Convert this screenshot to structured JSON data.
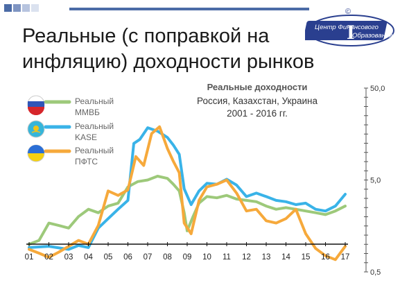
{
  "slide": {
    "title": "Реальные (с поправкой на инфляцию) доходности рынков",
    "logo_text_1": "Центр Финансового",
    "logo_text_2": "Образования",
    "logo_mark": "I",
    "logo_copyright": "©"
  },
  "chart_data": {
    "type": "line",
    "title": "Реальные доходности",
    "subtitle_1": "Россия, Казахстан, Украина",
    "subtitle_2": "2001 - 2016 гг.",
    "x_ticks": [
      "01",
      "02",
      "03",
      "04",
      "05",
      "06",
      "07",
      "08",
      "09",
      "10",
      "11",
      "12",
      "13",
      "14",
      "15",
      "16",
      "17"
    ],
    "y_scale": "log",
    "ylim": [
      0.5,
      50
    ],
    "y_ticks": [
      "50,0",
      "5,0",
      "0,5"
    ],
    "grid": false,
    "legend_position": "top-left",
    "series": [
      {
        "name": "Реальный ММВБ",
        "legend_line1": "Реальный",
        "legend_line2": "ММВБ",
        "color": "#9dc97a",
        "flag": "russia-flag-icon",
        "x": [
          2001,
          2001.5,
          2002,
          2002.5,
          2003,
          2003.5,
          2004,
          2004.5,
          2005,
          2005.5,
          2006,
          2006.5,
          2007,
          2007.5,
          2008,
          2008.3,
          2008.6,
          2008.85,
          2009,
          2009.3,
          2009.6,
          2010,
          2010.5,
          2011,
          2011.5,
          2012,
          2012.5,
          2013,
          2013.5,
          2014,
          2014.5,
          2015,
          2015.5,
          2016,
          2016.5,
          2017
        ],
        "y": [
          1.0,
          1.1,
          1.7,
          1.6,
          1.5,
          2.0,
          2.4,
          2.2,
          2.6,
          2.8,
          4.2,
          4.8,
          5.0,
          5.5,
          5.2,
          4.5,
          3.8,
          2.2,
          1.4,
          2.0,
          2.8,
          3.3,
          3.2,
          3.4,
          3.1,
          3.0,
          2.9,
          2.6,
          2.4,
          2.5,
          2.4,
          2.3,
          2.2,
          2.1,
          2.3,
          2.6
        ]
      },
      {
        "name": "Реальный KASE",
        "legend_line1": "Реальный",
        "legend_line2": "KASE",
        "color": "#39b3e8",
        "flag": "kazakhstan-flag-icon",
        "x": [
          2001,
          2002,
          2003,
          2003.5,
          2004,
          2004.5,
          2005,
          2005.5,
          2006,
          2006.3,
          2006.6,
          2007,
          2007.5,
          2008,
          2008.3,
          2008.6,
          2008.85,
          2009.2,
          2009.6,
          2010,
          2010.5,
          2011,
          2011.5,
          2012,
          2012.5,
          2013,
          2013.5,
          2014,
          2014.5,
          2015,
          2015.5,
          2016,
          2016.5,
          2017
        ],
        "y": [
          0.92,
          0.95,
          0.88,
          0.97,
          0.92,
          1.5,
          1.9,
          2.4,
          3.0,
          12.5,
          13.8,
          18.5,
          17.0,
          14.5,
          12.0,
          9.5,
          4.0,
          2.7,
          3.8,
          4.6,
          4.5,
          5.1,
          4.4,
          3.3,
          3.6,
          3.3,
          3.0,
          2.9,
          2.7,
          2.8,
          2.4,
          2.3,
          2.6,
          3.5
        ]
      },
      {
        "name": "Реальный ПФТС",
        "legend_line1": "Реальный",
        "legend_line2": "ПФТС",
        "color": "#f6a93b",
        "flag": "ukraine-flag-icon",
        "x": [
          2001,
          2001.5,
          2002,
          2002.5,
          2003,
          2003.5,
          2004,
          2004.5,
          2005,
          2005.5,
          2006,
          2006.4,
          2006.8,
          2007.2,
          2007.6,
          2008,
          2008.3,
          2008.6,
          2008.85,
          2009.2,
          2009.6,
          2010,
          2010.5,
          2011,
          2011.5,
          2012,
          2012.5,
          2013,
          2013.5,
          2014,
          2014.5,
          2015,
          2015.5,
          2016,
          2016.5,
          2017
        ],
        "y": [
          0.88,
          0.8,
          0.72,
          0.82,
          0.95,
          1.1,
          1.0,
          1.6,
          3.8,
          3.4,
          3.9,
          9.0,
          7.2,
          16.0,
          19.0,
          11.0,
          8.0,
          6.0,
          1.7,
          1.3,
          3.0,
          4.2,
          4.5,
          5.0,
          3.6,
          2.3,
          2.4,
          1.8,
          1.7,
          1.9,
          2.4,
          1.3,
          0.9,
          0.75,
          0.68,
          0.95
        ]
      }
    ]
  }
}
